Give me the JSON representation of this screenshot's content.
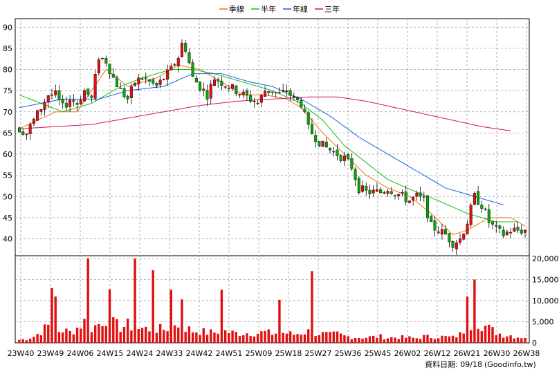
{
  "legend": [
    {
      "label": "季線",
      "color": "#f07010"
    },
    {
      "label": "半年",
      "color": "#10c010"
    },
    {
      "label": "年線",
      "color": "#1060e0"
    },
    {
      "label": "三年",
      "color": "#d01060"
    }
  ],
  "footer": {
    "date_label": "資料日期: 09/18",
    "source": "(Goodinfo.tw)"
  },
  "chart_data": {
    "type": "candlestick",
    "x_labels": [
      "23W40",
      "23W49",
      "24W06",
      "24W15",
      "24W24",
      "24W33",
      "24W42",
      "24W51",
      "25W09",
      "25W18",
      "25W27",
      "25W36",
      "25W45",
      "26W02",
      "26W12",
      "26W21",
      "26W30",
      "26W38"
    ],
    "price_axis": {
      "ylim": [
        36,
        92
      ],
      "ticks": [
        40,
        45,
        50,
        55,
        60,
        65,
        70,
        75,
        80,
        85,
        90
      ],
      "grid": true
    },
    "volume_axis": {
      "ylim": [
        0,
        20000
      ],
      "ticks": [
        0,
        5000,
        10000,
        15000,
        20000
      ],
      "tick_labels": [
        "0",
        "5,000",
        "10,000",
        "15,000",
        "20,000"
      ]
    },
    "anchors": {
      "price": [
        [
          0,
          66
        ],
        [
          2,
          65
        ],
        [
          4,
          68
        ],
        [
          6,
          71
        ],
        [
          8,
          74
        ],
        [
          10,
          74
        ],
        [
          12,
          71
        ],
        [
          14,
          73
        ],
        [
          16,
          72
        ],
        [
          18,
          75
        ],
        [
          20,
          73
        ],
        [
          22,
          83
        ],
        [
          24,
          82
        ],
        [
          26,
          78
        ],
        [
          28,
          75
        ],
        [
          30,
          73
        ],
        [
          32,
          77
        ],
        [
          34,
          78
        ],
        [
          36,
          77
        ],
        [
          38,
          76
        ],
        [
          40,
          78
        ],
        [
          42,
          80
        ],
        [
          44,
          83
        ],
        [
          45,
          86
        ],
        [
          46,
          85
        ],
        [
          48,
          78
        ],
        [
          50,
          76
        ],
        [
          52,
          74
        ],
        [
          54,
          78
        ],
        [
          56,
          77
        ],
        [
          58,
          76
        ],
        [
          60,
          75
        ],
        [
          62,
          74
        ],
        [
          64,
          73
        ],
        [
          66,
          72
        ],
        [
          68,
          75
        ],
        [
          70,
          75
        ],
        [
          72,
          74
        ],
        [
          74,
          75
        ],
        [
          76,
          73
        ],
        [
          78,
          72
        ],
        [
          80,
          66
        ],
        [
          82,
          64
        ],
        [
          84,
          62
        ],
        [
          86,
          61
        ],
        [
          88,
          60
        ],
        [
          90,
          59
        ],
        [
          92,
          57
        ],
        [
          94,
          52
        ],
        [
          96,
          51
        ],
        [
          98,
          51
        ],
        [
          100,
          51
        ],
        [
          102,
          52
        ],
        [
          104,
          51
        ],
        [
          106,
          50
        ],
        [
          108,
          49
        ],
        [
          110,
          50
        ],
        [
          112,
          49
        ],
        [
          114,
          43
        ],
        [
          116,
          42
        ],
        [
          118,
          41
        ],
        [
          120,
          39
        ],
        [
          122,
          40
        ],
        [
          124,
          44
        ],
        [
          126,
          50
        ],
        [
          128,
          48
        ],
        [
          130,
          44
        ],
        [
          132,
          42
        ],
        [
          134,
          41
        ],
        [
          136,
          42
        ],
        [
          138,
          42
        ]
      ],
      "volume": [
        [
          0,
          700
        ],
        [
          2,
          900
        ],
        [
          4,
          1500
        ],
        [
          6,
          2700
        ],
        [
          8,
          4000
        ],
        [
          10,
          2500
        ],
        [
          12,
          3000
        ],
        [
          14,
          2500
        ],
        [
          16,
          3600
        ],
        [
          18,
          5000
        ],
        [
          20,
          3500
        ],
        [
          22,
          4500
        ],
        [
          24,
          6200
        ],
        [
          26,
          4500
        ],
        [
          28,
          3700
        ],
        [
          30,
          4200
        ],
        [
          32,
          3600
        ],
        [
          34,
          3400
        ],
        [
          36,
          3300
        ],
        [
          38,
          3200
        ],
        [
          40,
          3200
        ],
        [
          42,
          3800
        ],
        [
          44,
          4200
        ],
        [
          46,
          3600
        ],
        [
          48,
          2800
        ],
        [
          50,
          2800
        ],
        [
          52,
          2400
        ],
        [
          54,
          2500
        ],
        [
          56,
          3000
        ],
        [
          58,
          2500
        ],
        [
          60,
          2300
        ],
        [
          62,
          2300
        ],
        [
          64,
          2400
        ],
        [
          66,
          2300
        ],
        [
          68,
          2500
        ],
        [
          70,
          2200
        ],
        [
          72,
          2400
        ],
        [
          74,
          2300
        ],
        [
          76,
          2000
        ],
        [
          78,
          2400
        ],
        [
          80,
          2700
        ],
        [
          82,
          2300
        ],
        [
          84,
          2100
        ],
        [
          86,
          1900
        ],
        [
          88,
          2100
        ],
        [
          90,
          1600
        ],
        [
          92,
          1400
        ],
        [
          94,
          1300
        ],
        [
          96,
          1300
        ],
        [
          98,
          1400
        ],
        [
          100,
          1500
        ],
        [
          102,
          1200
        ],
        [
          104,
          1300
        ],
        [
          106,
          1300
        ],
        [
          108,
          1200
        ],
        [
          110,
          1100
        ],
        [
          112,
          1500
        ],
        [
          114,
          1400
        ],
        [
          116,
          1500
        ],
        [
          118,
          1400
        ],
        [
          120,
          1300
        ],
        [
          122,
          2000
        ],
        [
          124,
          4000
        ],
        [
          126,
          5500
        ],
        [
          128,
          4500
        ],
        [
          130,
          3400
        ],
        [
          132,
          2500
        ],
        [
          134,
          1900
        ],
        [
          136,
          1800
        ],
        [
          138,
          1400
        ]
      ],
      "volume_spikes": [
        [
          9,
          13000
        ],
        [
          10,
          11000
        ],
        [
          19,
          20000
        ],
        [
          25,
          12700
        ],
        [
          32,
          20000
        ],
        [
          37,
          17200
        ],
        [
          42,
          12600
        ],
        [
          45,
          10300
        ],
        [
          56,
          12600
        ],
        [
          72,
          10200
        ],
        [
          81,
          17000
        ],
        [
          124,
          11000
        ],
        [
          126,
          15000
        ]
      ]
    },
    "ma_lines": {
      "quarter": [
        [
          0,
          66
        ],
        [
          10,
          70
        ],
        [
          16,
          70
        ],
        [
          24,
          80
        ],
        [
          30,
          76
        ],
        [
          38,
          78
        ],
        [
          44,
          81
        ],
        [
          50,
          80
        ],
        [
          56,
          77
        ],
        [
          62,
          74
        ],
        [
          68,
          74
        ],
        [
          74,
          73
        ],
        [
          78,
          71
        ],
        [
          84,
          65
        ],
        [
          90,
          60
        ],
        [
          96,
          55
        ],
        [
          102,
          52
        ],
        [
          108,
          50
        ],
        [
          114,
          46
        ],
        [
          120,
          41
        ],
        [
          124,
          42
        ],
        [
          130,
          45
        ],
        [
          136,
          45
        ],
        [
          140,
          43
        ]
      ],
      "half": [
        [
          0,
          74
        ],
        [
          6,
          72
        ],
        [
          12,
          70
        ],
        [
          20,
          72
        ],
        [
          28,
          76
        ],
        [
          34,
          78
        ],
        [
          42,
          80
        ],
        [
          48,
          80
        ],
        [
          54,
          79
        ],
        [
          62,
          77
        ],
        [
          70,
          75
        ],
        [
          78,
          72
        ],
        [
          84,
          68
        ],
        [
          90,
          62
        ],
        [
          96,
          58
        ],
        [
          102,
          54
        ],
        [
          110,
          51
        ],
        [
          116,
          49
        ],
        [
          124,
          46
        ],
        [
          132,
          44
        ],
        [
          138,
          44
        ]
      ],
      "year": [
        [
          0,
          71
        ],
        [
          12,
          73
        ],
        [
          22,
          73
        ],
        [
          30,
          75
        ],
        [
          40,
          76
        ],
        [
          48,
          79
        ],
        [
          56,
          79
        ],
        [
          64,
          77
        ],
        [
          70,
          76
        ],
        [
          78,
          73
        ],
        [
          86,
          69
        ],
        [
          94,
          64
        ],
        [
          102,
          60
        ],
        [
          110,
          56
        ],
        [
          118,
          52
        ],
        [
          126,
          50
        ],
        [
          134,
          48
        ]
      ],
      "three_year": [
        [
          0,
          66
        ],
        [
          10,
          66.5
        ],
        [
          20,
          67
        ],
        [
          30,
          68.5
        ],
        [
          40,
          70
        ],
        [
          50,
          71.5
        ],
        [
          60,
          72.5
        ],
        [
          70,
          73
        ],
        [
          80,
          73.5
        ],
        [
          88,
          73.5
        ],
        [
          96,
          72.5
        ],
        [
          104,
          71
        ],
        [
          112,
          69.5
        ],
        [
          120,
          68
        ],
        [
          128,
          66.5
        ],
        [
          136,
          65.5
        ]
      ]
    },
    "candle_colors": {
      "up": "#e01010",
      "down": "#10a010"
    },
    "volume_color": "#e01010"
  }
}
